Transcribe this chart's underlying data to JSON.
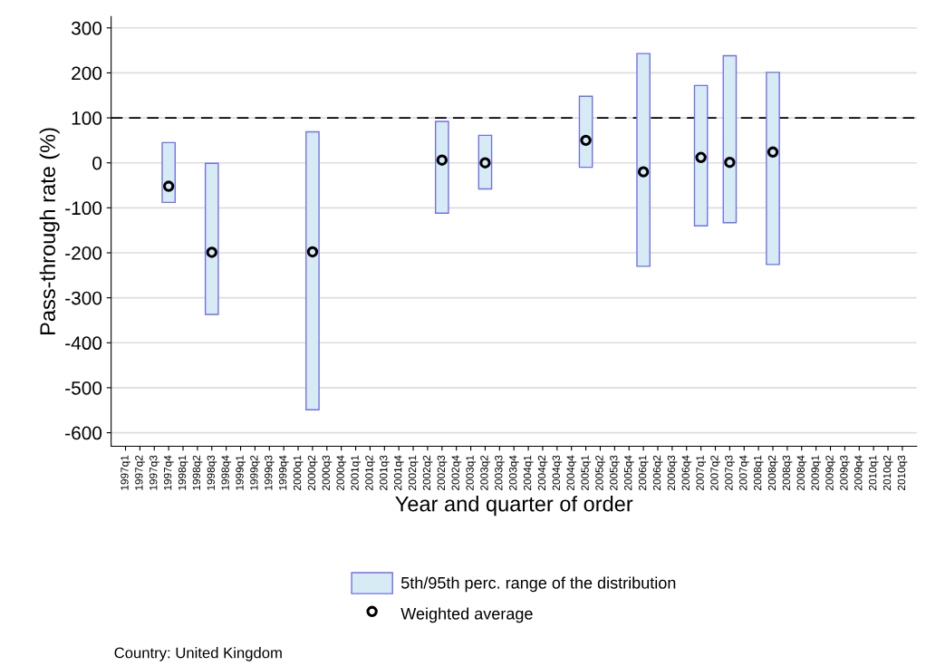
{
  "chart_data": {
    "type": "bar",
    "xlabel": "Year and quarter of order",
    "ylabel": "Pass-through rate (%)",
    "categories": [
      "1997q1",
      "1997q2",
      "1997q3",
      "1997q4",
      "1998q1",
      "1998q2",
      "1998q3",
      "1998q4",
      "1999q1",
      "1999q2",
      "1999q3",
      "1999q4",
      "2000q1",
      "2000q2",
      "2000q3",
      "2000q4",
      "2001q1",
      "2001q2",
      "2001q3",
      "2001q4",
      "2002q1",
      "2002q2",
      "2002q3",
      "2002q4",
      "2003q1",
      "2003q2",
      "2003q3",
      "2003q4",
      "2004q1",
      "2004q2",
      "2004q3",
      "2004q4",
      "2005q1",
      "2005q2",
      "2005q3",
      "2005q4",
      "2006q1",
      "2006q2",
      "2006q3",
      "2006q4",
      "2007q1",
      "2007q2",
      "2007q3",
      "2007q4",
      "2008q1",
      "2008q2",
      "2008q3",
      "2008q4",
      "2009q1",
      "2009q2",
      "2009q3",
      "2009q4",
      "2010q1",
      "2010q2",
      "2010q3"
    ],
    "series": [
      {
        "name": "5th/95th perc. range of the distribution",
        "color": "#d7ebf5",
        "base": [
          null,
          null,
          null,
          -88,
          null,
          null,
          -337,
          null,
          null,
          null,
          null,
          null,
          null,
          -549,
          null,
          null,
          null,
          null,
          null,
          null,
          null,
          null,
          -112,
          null,
          null,
          -58,
          null,
          null,
          null,
          null,
          null,
          null,
          -10,
          null,
          null,
          null,
          -230,
          null,
          null,
          null,
          -140,
          null,
          -133,
          null,
          null,
          -226,
          null,
          null,
          null,
          null,
          null,
          null,
          null,
          null,
          null
        ],
        "values": [
          null,
          null,
          null,
          133,
          null,
          null,
          336,
          null,
          null,
          null,
          null,
          null,
          null,
          618,
          null,
          null,
          null,
          null,
          null,
          null,
          null,
          null,
          204,
          null,
          null,
          119,
          null,
          null,
          null,
          null,
          null,
          null,
          158,
          null,
          null,
          null,
          473,
          null,
          null,
          null,
          312,
          null,
          371,
          null,
          null,
          427,
          null,
          null,
          null,
          null,
          null,
          null,
          null,
          null,
          null
        ]
      },
      {
        "name": "Weighted average",
        "type": "scatter",
        "color": "#000000",
        "marker": "circle",
        "values": [
          null,
          null,
          null,
          -52,
          null,
          null,
          -199,
          null,
          null,
          null,
          null,
          null,
          null,
          -198,
          null,
          null,
          null,
          null,
          null,
          null,
          null,
          null,
          6,
          null,
          null,
          0,
          null,
          null,
          null,
          null,
          null,
          null,
          50,
          null,
          null,
          null,
          -20,
          null,
          null,
          null,
          12,
          null,
          1,
          null,
          null,
          24,
          null,
          null,
          null,
          null,
          null,
          null,
          null,
          null,
          null
        ]
      }
    ],
    "ylim": [
      -630,
      325
    ],
    "yticks": [
      -600,
      -500,
      -400,
      -300,
      -200,
      -100,
      0,
      100,
      200,
      300
    ],
    "ref_lines": [
      {
        "axis": "y",
        "value": 100,
        "color": "#000000",
        "line_style": "dashed"
      }
    ],
    "grid": "y",
    "legend": "bottom",
    "annotations": [
      "Country: United Kingdom"
    ]
  }
}
